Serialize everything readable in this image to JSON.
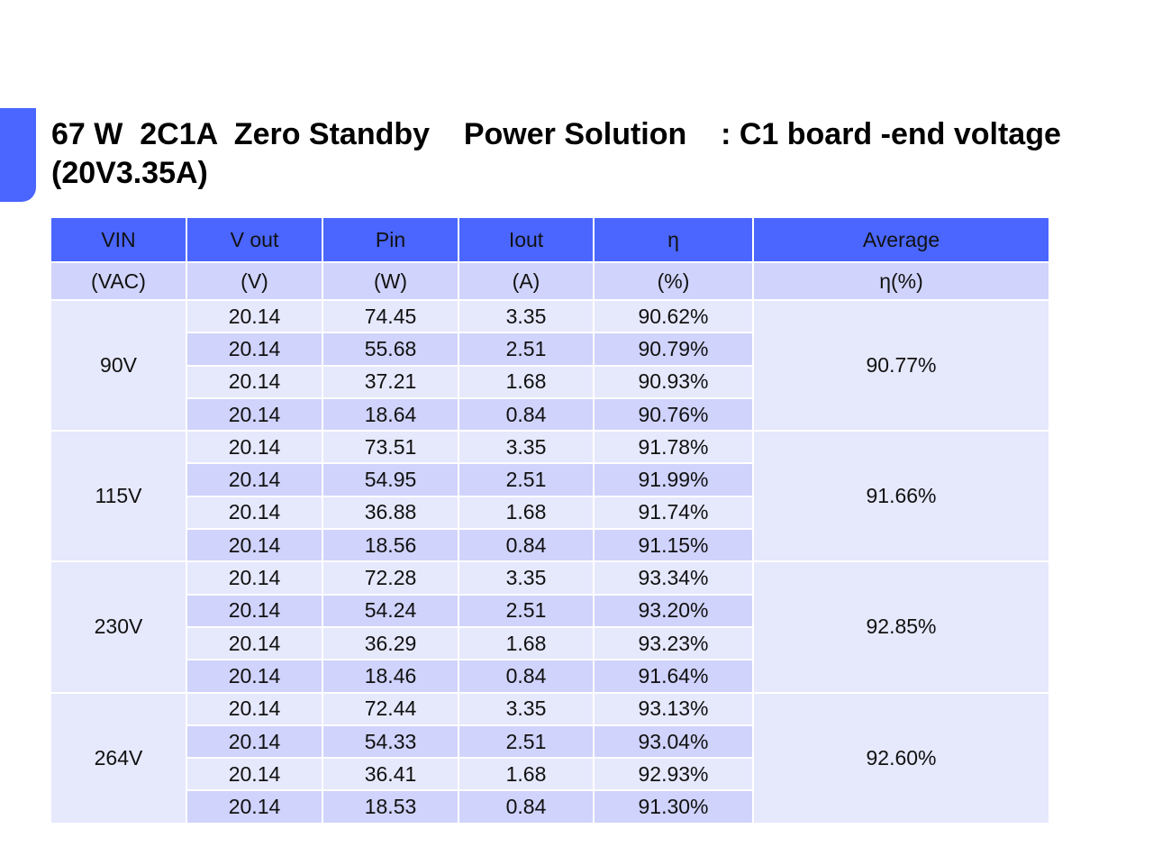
{
  "slide": {
    "title": "67 W  2C1A  Zero Standby    Power Solution    : C1 board -end voltage (20V3.35A)",
    "accent_color": "#4a66ff"
  },
  "table": {
    "header": [
      "VIN",
      "V out",
      "Pin",
      "Iout",
      "η",
      "Average"
    ],
    "units": [
      "(VAC)",
      "(V)",
      "(W)",
      "(A)",
      "(%)",
      "η(%)"
    ],
    "colors": {
      "header_bg": "#4a66ff",
      "alt_row_bg": "#d0d3fb",
      "row_bg": "#e6e8fc"
    },
    "groups": [
      {
        "vin": "90V",
        "average": "90.77%",
        "rows": [
          {
            "vout": "20.14",
            "pin": "74.45",
            "iout": "3.35",
            "eff": "90.62%"
          },
          {
            "vout": "20.14",
            "pin": "55.68",
            "iout": "2.51",
            "eff": "90.79%"
          },
          {
            "vout": "20.14",
            "pin": "37.21",
            "iout": "1.68",
            "eff": "90.93%"
          },
          {
            "vout": "20.14",
            "pin": "18.64",
            "iout": "0.84",
            "eff": "90.76%"
          }
        ]
      },
      {
        "vin": "115V",
        "average": "91.66%",
        "rows": [
          {
            "vout": "20.14",
            "pin": "73.51",
            "iout": "3.35",
            "eff": "91.78%"
          },
          {
            "vout": "20.14",
            "pin": "54.95",
            "iout": "2.51",
            "eff": "91.99%"
          },
          {
            "vout": "20.14",
            "pin": "36.88",
            "iout": "1.68",
            "eff": "91.74%"
          },
          {
            "vout": "20.14",
            "pin": "18.56",
            "iout": "0.84",
            "eff": "91.15%"
          }
        ]
      },
      {
        "vin": "230V",
        "average": "92.85%",
        "rows": [
          {
            "vout": "20.14",
            "pin": "72.28",
            "iout": "3.35",
            "eff": "93.34%"
          },
          {
            "vout": "20.14",
            "pin": "54.24",
            "iout": "2.51",
            "eff": "93.20%"
          },
          {
            "vout": "20.14",
            "pin": "36.29",
            "iout": "1.68",
            "eff": "93.23%"
          },
          {
            "vout": "20.14",
            "pin": "18.46",
            "iout": "0.84",
            "eff": "91.64%"
          }
        ]
      },
      {
        "vin": "264V",
        "average": "92.60%",
        "rows": [
          {
            "vout": "20.14",
            "pin": "72.44",
            "iout": "3.35",
            "eff": "93.13%"
          },
          {
            "vout": "20.14",
            "pin": "54.33",
            "iout": "2.51",
            "eff": "93.04%"
          },
          {
            "vout": "20.14",
            "pin": "36.41",
            "iout": "1.68",
            "eff": "92.93%"
          },
          {
            "vout": "20.14",
            "pin": "18.53",
            "iout": "0.84",
            "eff": "91.30%"
          }
        ]
      }
    ]
  }
}
